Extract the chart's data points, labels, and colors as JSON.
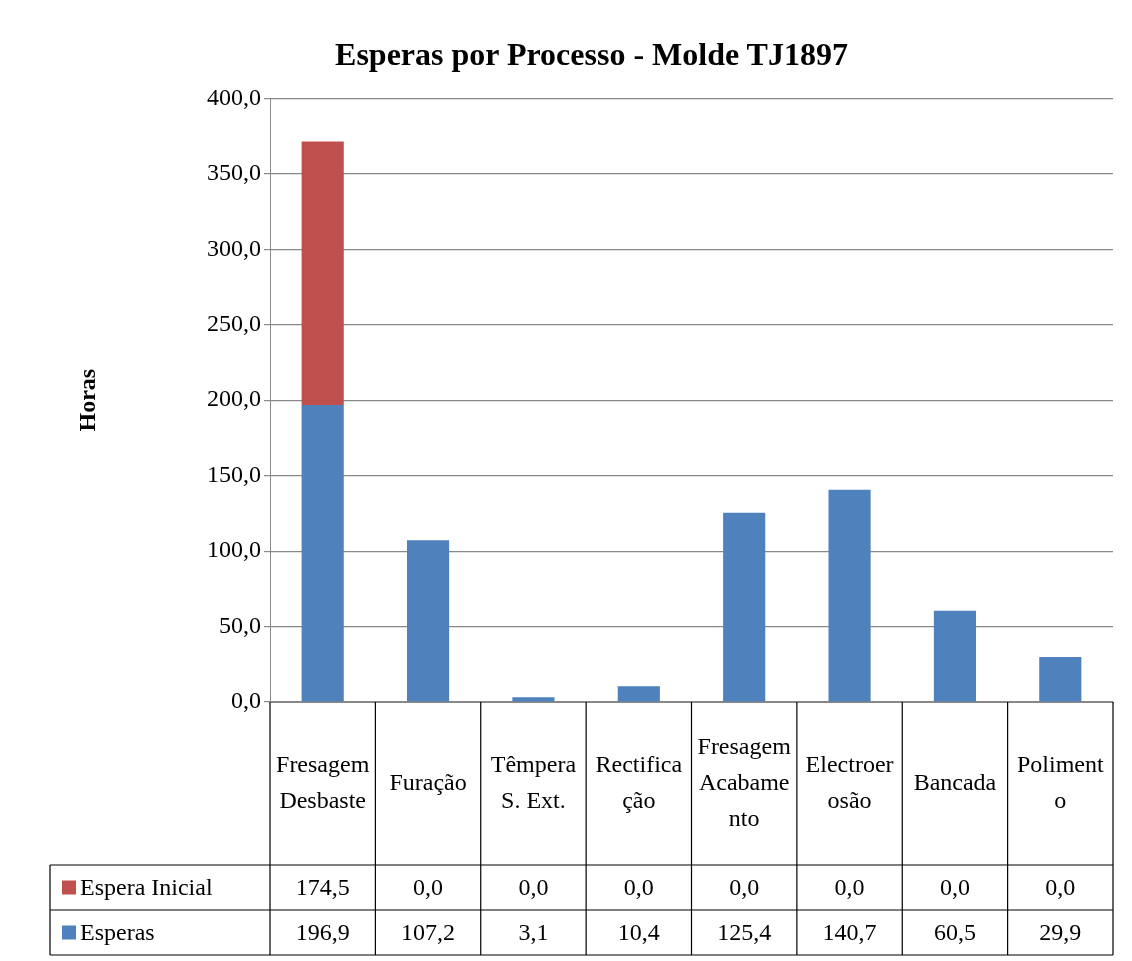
{
  "chart_data": {
    "type": "bar",
    "title": "Esperas por Processo - Molde TJ1897",
    "ylabel": "Horas",
    "categories": [
      "Fresagem Desbaste",
      "Furação",
      "Têmpera S. Ext.",
      "Rectificação",
      "Fresagem Acabamento",
      "Electroerosão",
      "Bancada",
      "Polimento"
    ],
    "stacked": true,
    "series": [
      {
        "name": "Esperas",
        "color": "#4f81bd",
        "values": [
          196.9,
          107.2,
          3.1,
          10.4,
          125.4,
          140.7,
          60.5,
          29.9
        ],
        "value_labels": [
          "196,9",
          "107,2",
          "3,1",
          "10,4",
          "125,4",
          "140,7",
          "60,5",
          "29,9"
        ]
      },
      {
        "name": "Espera Inicial",
        "color": "#c0504d",
        "values": [
          174.5,
          0.0,
          0.0,
          0.0,
          0.0,
          0.0,
          0.0,
          0.0
        ],
        "value_labels": [
          "174,5",
          "0,0",
          "0,0",
          "0,0",
          "0,0",
          "0,0",
          "0,0",
          "0,0"
        ]
      }
    ],
    "ylim": [
      0,
      400
    ],
    "yticks": [
      {
        "value": 0,
        "label": "0,0"
      },
      {
        "value": 50,
        "label": "50,0"
      },
      {
        "value": 100,
        "label": "100,0"
      },
      {
        "value": 150,
        "label": "150,0"
      },
      {
        "value": 200,
        "label": "200,0"
      },
      {
        "value": 250,
        "label": "250,0"
      },
      {
        "value": 300,
        "label": "300,0"
      },
      {
        "value": 350,
        "label": "350,0"
      },
      {
        "value": 400,
        "label": "400,0"
      }
    ],
    "grid": "y",
    "legend": "bottom"
  }
}
